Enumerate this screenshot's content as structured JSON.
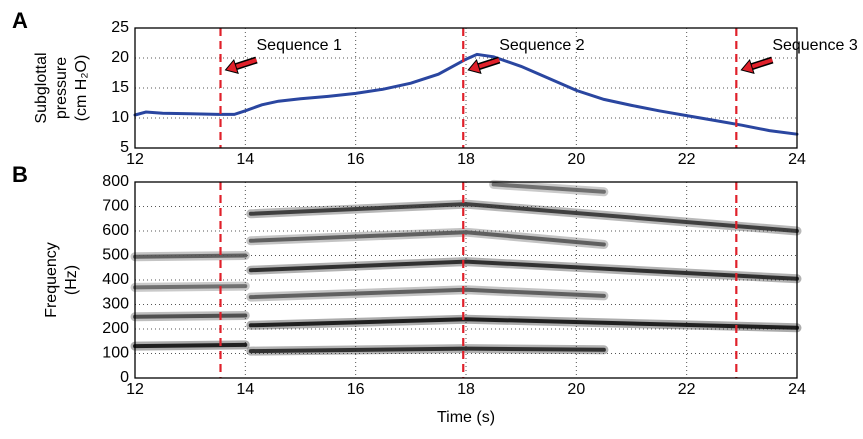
{
  "chart_data": [
    {
      "type": "line",
      "panel_label": "A",
      "ylabel": [
        "Subglottal",
        "pressure",
        "(cm H₂O)"
      ],
      "xlim": [
        12,
        24
      ],
      "xticks": [
        12,
        14,
        16,
        18,
        20,
        22,
        24
      ],
      "ylim": [
        5,
        25
      ],
      "yticks": [
        5,
        10,
        15,
        20,
        25
      ],
      "grid": true,
      "series": [
        {
          "color": "#2a46a0",
          "x": [
            12,
            12.2,
            12.5,
            13,
            13.5,
            13.8,
            14,
            14.3,
            14.6,
            15,
            15.5,
            16,
            16.5,
            17,
            17.5,
            18,
            18.2,
            18.5,
            19,
            19.5,
            20,
            20.5,
            21,
            21.5,
            22,
            22.5,
            23,
            23.5,
            24
          ],
          "values": [
            10.5,
            11,
            10.8,
            10.7,
            10.6,
            10.6,
            11.2,
            12.2,
            12.8,
            13.2,
            13.6,
            14.1,
            14.8,
            15.8,
            17.3,
            19.8,
            20.6,
            20.2,
            18.6,
            16.6,
            14.6,
            13.1,
            12.1,
            11.2,
            10.4,
            9.6,
            8.8,
            7.9,
            7.3
          ]
        }
      ],
      "markers": [
        {
          "x": 13.55,
          "label": "Sequence 1"
        },
        {
          "x": 17.95,
          "label": "Sequence 2"
        },
        {
          "x": 22.9,
          "label": "Sequence 3"
        }
      ],
      "marker_color": "#e0202a"
    },
    {
      "type": "spectrogram",
      "panel_label": "B",
      "ylabel": [
        "Frequency",
        "(Hz)"
      ],
      "xlabel": "Time (s)",
      "xlim": [
        12,
        24
      ],
      "xticks": [
        12,
        14,
        16,
        18,
        20,
        22,
        24
      ],
      "ylim": [
        0,
        800
      ],
      "yticks": [
        0,
        100,
        200,
        300,
        400,
        500,
        600,
        700,
        800
      ],
      "grid": true,
      "series": [
        {
          "color": "#111",
          "x": [
            12,
            14
          ],
          "values": [
            130,
            135
          ]
        },
        {
          "color": "#222",
          "x": [
            14.1,
            18,
            20.5
          ],
          "values": [
            110,
            120,
            115
          ]
        },
        {
          "color": "#444",
          "x": [
            12,
            14
          ],
          "values": [
            250,
            255
          ]
        },
        {
          "color": "#111",
          "x": [
            14.1,
            18,
            24
          ],
          "values": [
            215,
            240,
            205
          ]
        },
        {
          "color": "#555",
          "x": [
            14.1,
            18,
            20.5
          ],
          "values": [
            330,
            360,
            335
          ]
        },
        {
          "color": "#666",
          "x": [
            12,
            14
          ],
          "values": [
            370,
            375
          ]
        },
        {
          "color": "#222",
          "x": [
            14.1,
            18,
            24
          ],
          "values": [
            440,
            475,
            405
          ]
        },
        {
          "color": "#555",
          "x": [
            14.1,
            18,
            20.5
          ],
          "values": [
            560,
            595,
            545
          ]
        },
        {
          "color": "#555",
          "x": [
            12,
            14
          ],
          "values": [
            495,
            500
          ]
        },
        {
          "color": "#333",
          "x": [
            14.1,
            18,
            24
          ],
          "values": [
            670,
            710,
            600
          ]
        },
        {
          "color": "#666",
          "x": [
            18.5,
            20.5
          ],
          "values": [
            790,
            760
          ]
        }
      ],
      "markers": [
        {
          "x": 13.55
        },
        {
          "x": 17.95
        },
        {
          "x": 22.9
        }
      ],
      "marker_color": "#e0202a"
    }
  ]
}
